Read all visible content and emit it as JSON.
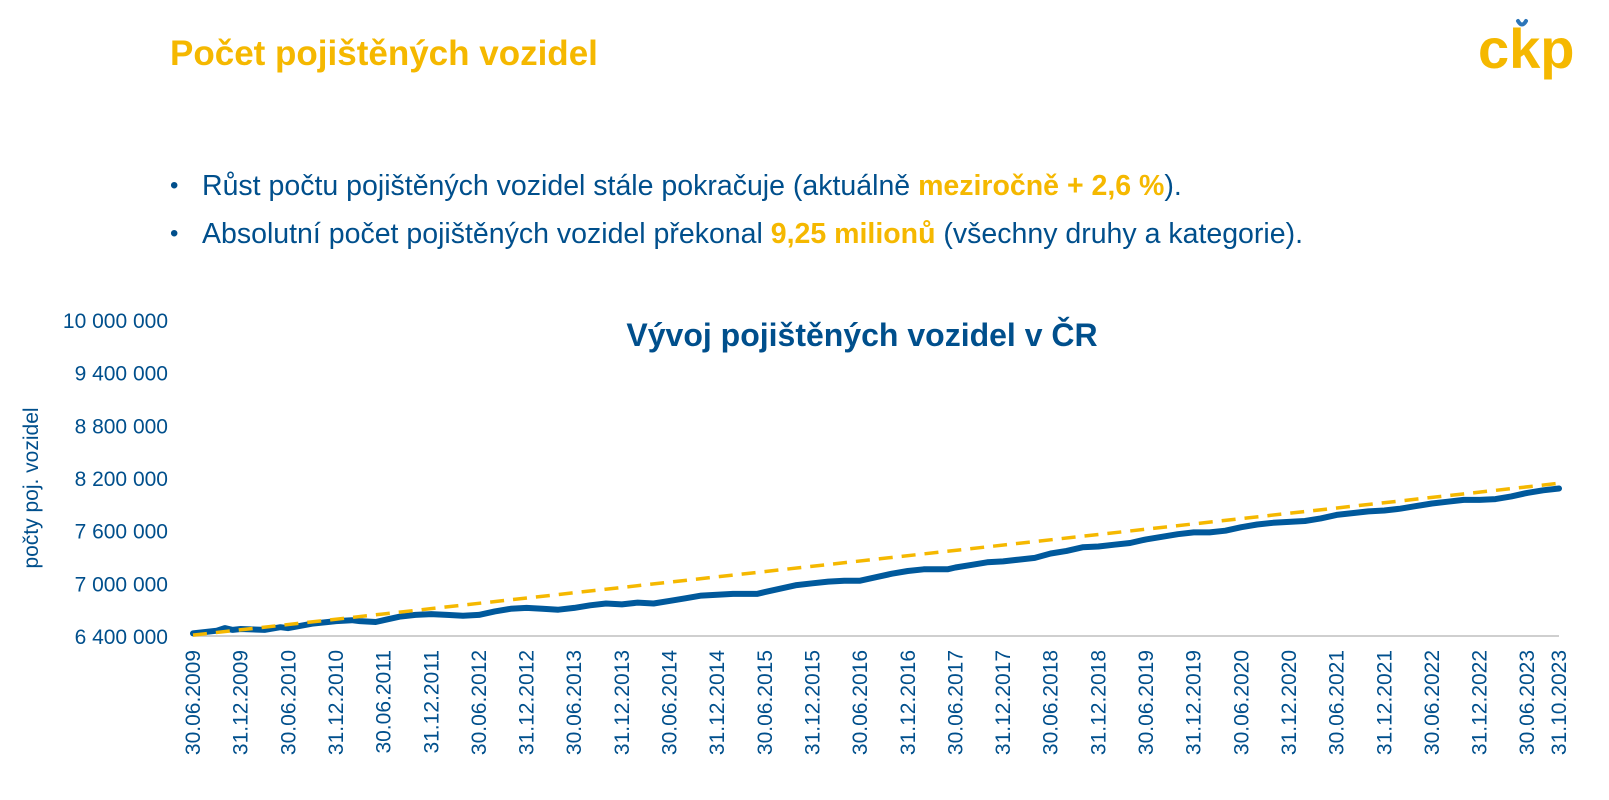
{
  "slide": {
    "title": "Počet pojištěných vozidel",
    "logo_text": "čkp",
    "bullets": [
      {
        "before": "Růst počtu pojištěných vozidel stále pokračuje (aktuálně ",
        "highlight": "meziročně + 2,6 %",
        "after": ")."
      },
      {
        "before": "Absolutní počet pojištěných vozidel překonal ",
        "highlight": "9,25 milionů",
        "after": " (všechny druhy a kategorie)."
      }
    ]
  },
  "colors": {
    "accent": "#f5b800",
    "brand_blue": "#004f8c",
    "series_line": "#00599c",
    "trend_line": "#f5b800",
    "axis": "#bfbfbf"
  },
  "chart_data": {
    "type": "line",
    "title": "Vývoj pojištěných vozidel v ČR",
    "ylabel": "počty poj. vozidel",
    "xlabel": "",
    "ylim": [
      6400000,
      10000000
    ],
    "y_ticks": [
      "6 400 000",
      "7 000 000",
      "7 600 000",
      "8 200 000",
      "8 800 000",
      "9 400 000",
      "10 000 000"
    ],
    "x_tick_labels": [
      "30.06.2009",
      "31.12.2009",
      "30.06.2010",
      "31.12.2010",
      "30.06.2011",
      "31.12.2011",
      "30.06.2012",
      "31.12.2012",
      "30.06.2013",
      "31.12.2013",
      "30.06.2014",
      "31.12.2014",
      "30.06.2015",
      "31.12.2015",
      "30.06.2016",
      "31.12.2016",
      "30.06.2017",
      "31.12.2017",
      "30.06.2018",
      "31.12.2018",
      "30.06.2019",
      "31.12.2019",
      "30.06.2020",
      "31.12.2020",
      "30.06.2021",
      "31.12.2021",
      "30.06.2022",
      "31.12.2022",
      "30.06.2023",
      "31.10.2023"
    ],
    "x_tick_months": [
      0,
      6,
      12,
      18,
      24,
      30,
      36,
      42,
      48,
      54,
      60,
      66,
      72,
      78,
      84,
      90,
      96,
      102,
      108,
      114,
      120,
      126,
      132,
      138,
      144,
      150,
      156,
      162,
      168,
      172
    ],
    "grid": false,
    "legend": "none",
    "series": [
      {
        "style": "solid",
        "points": [
          [
            "2009-06",
            6430000
          ],
          [
            "2009-09",
            6460000
          ],
          [
            "2009-10",
            6490000
          ],
          [
            "2009-11",
            6470000
          ],
          [
            "2009-12",
            6480000
          ],
          [
            "2010-03",
            6470000
          ],
          [
            "2010-05",
            6500000
          ],
          [
            "2010-06",
            6490000
          ],
          [
            "2010-09",
            6540000
          ],
          [
            "2010-11",
            6560000
          ],
          [
            "2010-12",
            6570000
          ],
          [
            "2011-02",
            6580000
          ],
          [
            "2011-03",
            6570000
          ],
          [
            "2011-05",
            6560000
          ],
          [
            "2011-06",
            6580000
          ],
          [
            "2011-08",
            6620000
          ],
          [
            "2011-10",
            6640000
          ],
          [
            "2011-12",
            6650000
          ],
          [
            "2012-02",
            6640000
          ],
          [
            "2012-04",
            6630000
          ],
          [
            "2012-06",
            6640000
          ],
          [
            "2012-08",
            6680000
          ],
          [
            "2012-10",
            6710000
          ],
          [
            "2012-12",
            6720000
          ],
          [
            "2013-02",
            6710000
          ],
          [
            "2013-04",
            6700000
          ],
          [
            "2013-06",
            6720000
          ],
          [
            "2013-08",
            6750000
          ],
          [
            "2013-10",
            6770000
          ],
          [
            "2013-12",
            6760000
          ],
          [
            "2014-02",
            6780000
          ],
          [
            "2014-04",
            6770000
          ],
          [
            "2014-06",
            6800000
          ],
          [
            "2014-08",
            6830000
          ],
          [
            "2014-10",
            6860000
          ],
          [
            "2014-12",
            6870000
          ],
          [
            "2015-02",
            6880000
          ],
          [
            "2015-05",
            6880000
          ],
          [
            "2015-06",
            6900000
          ],
          [
            "2015-08",
            6940000
          ],
          [
            "2015-10",
            6980000
          ],
          [
            "2015-12",
            7000000
          ],
          [
            "2016-02",
            7020000
          ],
          [
            "2016-04",
            7030000
          ],
          [
            "2016-06",
            7030000
          ],
          [
            "2016-08",
            7070000
          ],
          [
            "2016-10",
            7110000
          ],
          [
            "2016-12",
            7140000
          ],
          [
            "2017-02",
            7160000
          ],
          [
            "2017-05",
            7160000
          ],
          [
            "2017-06",
            7180000
          ],
          [
            "2017-08",
            7210000
          ],
          [
            "2017-10",
            7240000
          ],
          [
            "2017-12",
            7250000
          ],
          [
            "2018-02",
            7270000
          ],
          [
            "2018-04",
            7290000
          ],
          [
            "2018-06",
            7340000
          ],
          [
            "2018-08",
            7370000
          ],
          [
            "2018-10",
            7410000
          ],
          [
            "2018-12",
            7420000
          ],
          [
            "2019-02",
            7440000
          ],
          [
            "2019-04",
            7460000
          ],
          [
            "2019-06",
            7500000
          ],
          [
            "2019-08",
            7530000
          ],
          [
            "2019-10",
            7560000
          ],
          [
            "2019-12",
            7580000
          ],
          [
            "2020-02",
            7580000
          ],
          [
            "2020-04",
            7600000
          ],
          [
            "2020-06",
            7640000
          ],
          [
            "2020-08",
            7670000
          ],
          [
            "2020-10",
            7690000
          ],
          [
            "2020-12",
            7700000
          ],
          [
            "2021-02",
            7710000
          ],
          [
            "2021-04",
            7740000
          ],
          [
            "2021-06",
            7780000
          ],
          [
            "2021-08",
            7800000
          ],
          [
            "2021-10",
            7820000
          ],
          [
            "2021-12",
            7830000
          ],
          [
            "2022-02",
            7850000
          ],
          [
            "2022-04",
            7880000
          ],
          [
            "2022-06",
            7910000
          ],
          [
            "2022-08",
            7930000
          ],
          [
            "2022-10",
            7950000
          ],
          [
            "2022-12",
            7950000
          ],
          [
            "2023-02",
            7960000
          ],
          [
            "2023-04",
            7990000
          ],
          [
            "2023-06",
            8030000
          ],
          [
            "2023-08",
            8060000
          ],
          [
            "2023-10",
            8080000
          ]
        ]
      },
      {
        "style": "dashed",
        "points": [
          [
            "2009-06",
            6410000
          ],
          [
            "2023-10",
            8140000
          ]
        ]
      }
    ]
  }
}
